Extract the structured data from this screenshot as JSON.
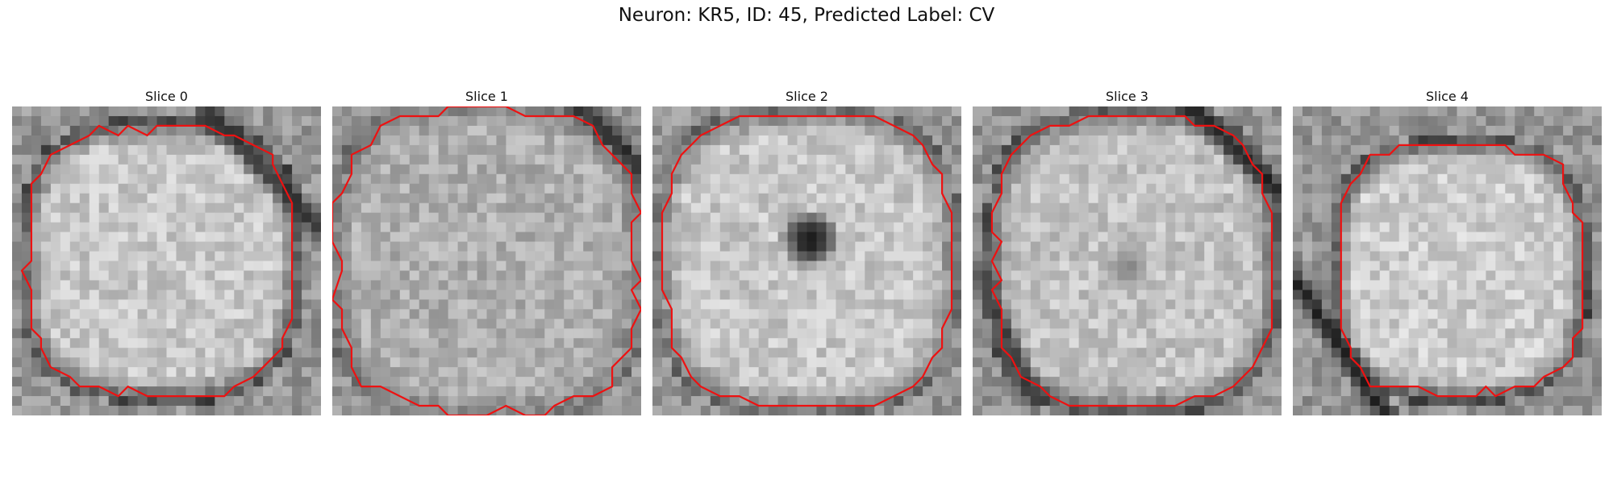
{
  "figure": {
    "title": "Neuron: KR5, ID: 45, Predicted Label: CV"
  },
  "panels": [
    {
      "title": "Slice 0"
    },
    {
      "title": "Slice 1"
    },
    {
      "title": "Slice 2"
    },
    {
      "title": "Slice 3"
    },
    {
      "title": "Slice 4"
    }
  ],
  "colors": {
    "contour": "#ee1111"
  }
}
